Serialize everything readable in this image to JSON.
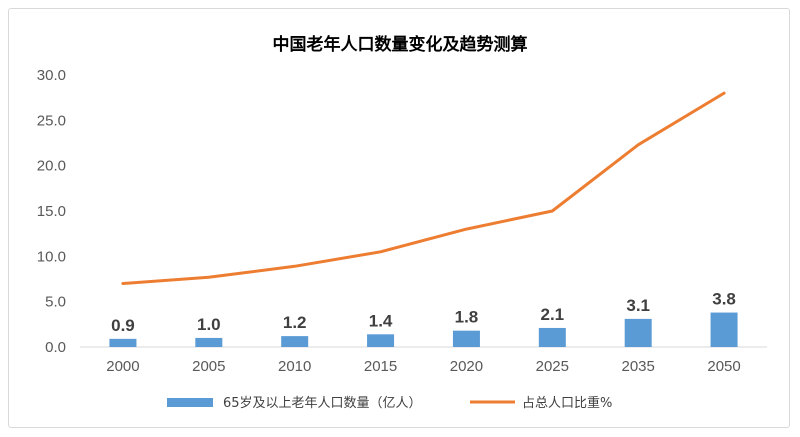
{
  "chart_data": {
    "type": "bar",
    "title": "中国老年人口数量变化及趋势测算",
    "categories": [
      "2000",
      "2005",
      "2010",
      "2015",
      "2020",
      "2025",
      "2035",
      "2050"
    ],
    "ylim": [
      0,
      30
    ],
    "yticks": [
      "0.0",
      "5.0",
      "10.0",
      "15.0",
      "20.0",
      "25.0",
      "30.0"
    ],
    "grid": false,
    "legend_position": "bottom",
    "series": [
      {
        "name": "65岁及以上老年人口数量（亿人）",
        "type": "bar",
        "color": "#5b9bd5",
        "values": [
          0.9,
          1.0,
          1.2,
          1.4,
          1.8,
          2.1,
          3.1,
          3.8
        ],
        "labels": [
          "0.9",
          "1.0",
          "1.2",
          "1.4",
          "1.8",
          "2.1",
          "3.1",
          "3.8"
        ]
      },
      {
        "name": "占总人口比重%",
        "type": "line",
        "color": "#ed7d31",
        "values": [
          7.0,
          7.7,
          8.9,
          10.5,
          13.0,
          15.0,
          22.3,
          28.0
        ]
      }
    ]
  }
}
